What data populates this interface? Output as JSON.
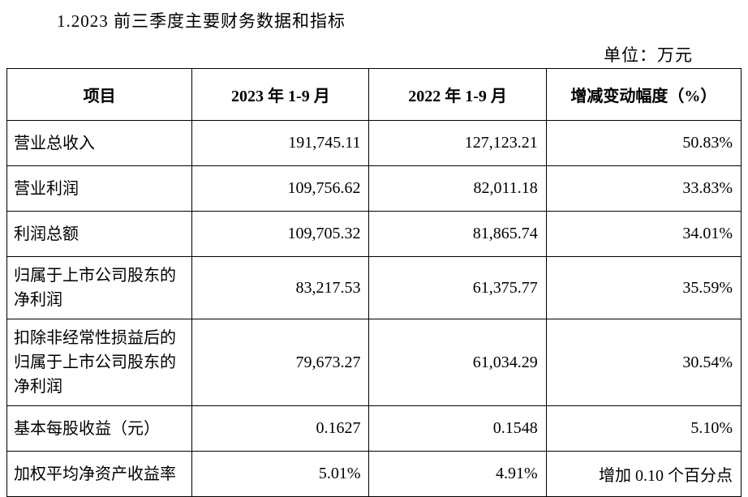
{
  "title": "1.2023 前三季度主要财务数据和指标",
  "unit": "单位：万元",
  "table": {
    "columns": [
      "项目",
      "2023 年 1-9 月",
      "2022 年 1-9 月",
      "增减变动幅度（%）"
    ],
    "rows": [
      {
        "item": "营业总收入",
        "y2023": "191,745.11",
        "y2022": "127,123.21",
        "change": "50.83%",
        "rowClass": "data-row"
      },
      {
        "item": "营业利润",
        "y2023": "109,756.62",
        "y2022": "82,011.18",
        "change": "33.83%",
        "rowClass": "data-row"
      },
      {
        "item": "利润总额",
        "y2023": "109,705.32",
        "y2022": "81,865.74",
        "change": "34.01%",
        "rowClass": "data-row"
      },
      {
        "item": "归属于上市公司股东的净利润",
        "y2023": "83,217.53",
        "y2022": "61,375.77",
        "change": "35.59%",
        "rowClass": "tall-row"
      },
      {
        "item": "扣除非经常性损益后的归属于上市公司股东的净利润",
        "y2023": "79,673.27",
        "y2022": "61,034.29",
        "change": "30.54%",
        "rowClass": "taller-row"
      },
      {
        "item": "基本每股收益（元）",
        "y2023": "0.1627",
        "y2022": "0.1548",
        "change": "5.10%",
        "rowClass": "data-row"
      },
      {
        "item": "加权平均净资产收益率",
        "y2023": "5.01%",
        "y2022": "4.91%",
        "change": "增加 0.10 个百分点",
        "rowClass": "data-row"
      }
    ]
  },
  "colors": {
    "background": "#ffffff",
    "text": "#000000",
    "border": "#000000"
  }
}
